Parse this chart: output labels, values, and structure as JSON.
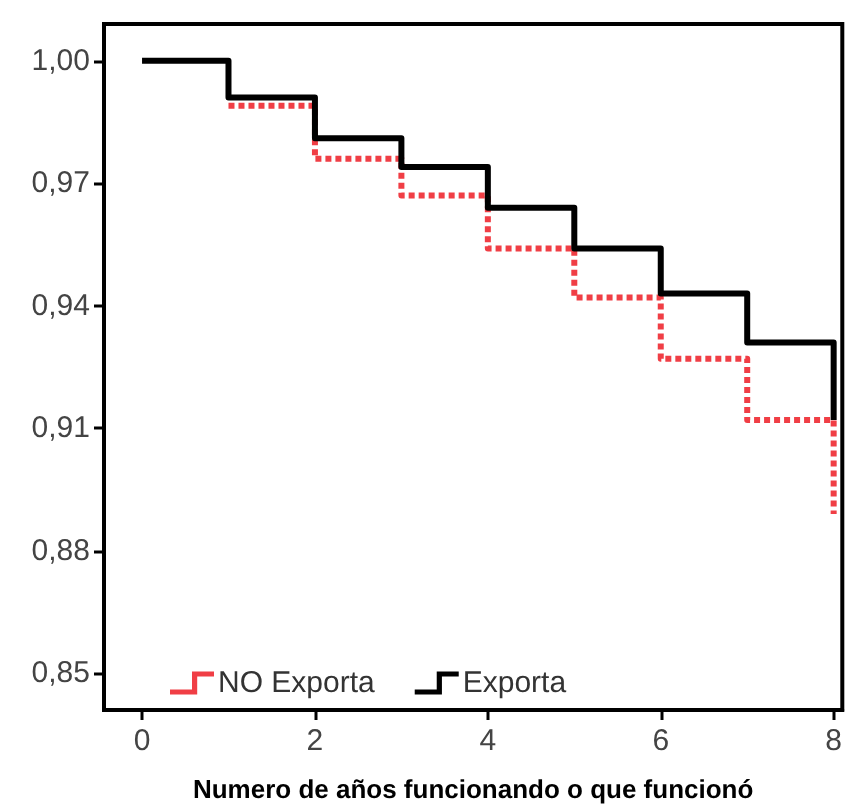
{
  "chart_data": {
    "type": "step",
    "xlabel": "Numero de años funcionando o que funcionó",
    "x": [
      0,
      1,
      2,
      3,
      4,
      5,
      6,
      7,
      8
    ],
    "series": [
      {
        "name": "NO Exporta",
        "color": "#f03e45",
        "line_style": "dotted",
        "values": [
          null,
          0.989,
          0.976,
          0.967,
          0.954,
          0.942,
          0.927,
          0.912,
          0.889
        ]
      },
      {
        "name": "Exporta",
        "color": "#000000",
        "line_style": "solid",
        "values": [
          1.0,
          0.991,
          0.981,
          0.974,
          0.964,
          0.954,
          0.943,
          0.931,
          0.912
        ]
      }
    ],
    "xlim": [
      -0.44,
      8.1
    ],
    "xticks": [
      0,
      2,
      4,
      6,
      8
    ],
    "ylim": [
      0.841,
      1.009
    ],
    "yticks": [
      {
        "value": 0.85,
        "label": "0,85"
      },
      {
        "value": 0.88,
        "label": "0,88"
      },
      {
        "value": 0.91,
        "label": "0,91"
      },
      {
        "value": 0.94,
        "label": "0,94"
      },
      {
        "value": 0.97,
        "label": "0,97"
      },
      {
        "value": 1.0,
        "label": "1,00"
      }
    ],
    "legend": "bottom left",
    "marker": "none"
  }
}
